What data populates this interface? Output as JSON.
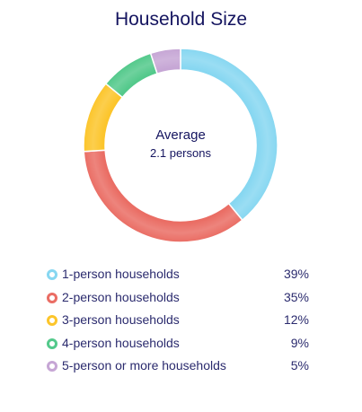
{
  "chart_data": {
    "type": "pie",
    "title": "Household Size",
    "center_label": {
      "line1": "Average",
      "line2": "2.1 persons"
    },
    "categories": [
      "1-person households",
      "2-person households",
      "3-person households",
      "4-person households",
      "5-person or more households"
    ],
    "values": [
      39,
      35,
      12,
      9,
      5
    ],
    "value_labels": [
      "39%",
      "35%",
      "12%",
      "9%",
      "5%"
    ],
    "colors": [
      "#87d7f1",
      "#ea6d64",
      "#fcc52b",
      "#53c98b",
      "#c6a6d5"
    ],
    "legend_position": "bottom"
  }
}
